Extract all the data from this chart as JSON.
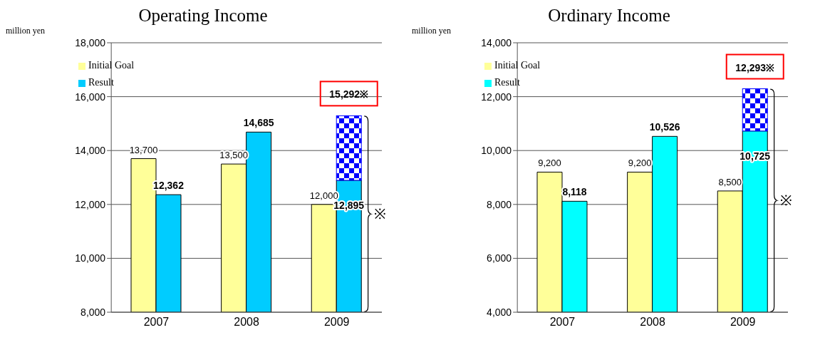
{
  "chart_data": [
    {
      "type": "bar",
      "title": "Operating Income",
      "ylabel": "million yen",
      "categories": [
        "2007",
        "2008",
        "2009"
      ],
      "legend": "top left",
      "grid": "y",
      "ylim": [
        8000,
        18000
      ],
      "yticks": [
        {
          "value": 8000,
          "label": "8,000"
        },
        {
          "value": 10000,
          "label": "10,000"
        },
        {
          "value": 12000,
          "label": "12,000"
        },
        {
          "value": 14000,
          "label": "14,000"
        },
        {
          "value": 16000,
          "label": "16,000"
        },
        {
          "value": 18000,
          "label": "18,000"
        }
      ],
      "series": [
        {
          "name": "Initial Goal",
          "color": "#ffff99",
          "values": [
            13700,
            13500,
            12000
          ],
          "value_labels": [
            "13,700",
            "13,500",
            "12,000"
          ]
        },
        {
          "name": "Result",
          "color": "#00ccff",
          "values": [
            12362,
            14685,
            12895
          ],
          "value_labels": [
            "12,362",
            "14,685",
            "12,895"
          ]
        },
        {
          "color": "#0000ff",
          "base": [
            null,
            null,
            12895
          ],
          "values": [
            null,
            null,
            2397
          ],
          "value_labels": [
            null,
            null,
            "15,292※"
          ]
        }
      ],
      "annotations": [
        "※"
      ]
    },
    {
      "type": "bar",
      "title": "Ordinary Income",
      "ylabel": "million yen",
      "categories": [
        "2007",
        "2008",
        "2009"
      ],
      "legend": "top left",
      "grid": "y",
      "ylim": [
        4000,
        14000
      ],
      "yticks": [
        {
          "value": 4000,
          "label": "4,000"
        },
        {
          "value": 6000,
          "label": "6,000"
        },
        {
          "value": 8000,
          "label": "8,000"
        },
        {
          "value": 10000,
          "label": "10,000"
        },
        {
          "value": 12000,
          "label": "12,000"
        },
        {
          "value": 14000,
          "label": "14,000"
        }
      ],
      "series": [
        {
          "name": "Initial Goal",
          "color": "#ffff99",
          "values": [
            9200,
            9200,
            8500
          ],
          "value_labels": [
            "9,200",
            "9,200",
            "8,500"
          ]
        },
        {
          "name": "Result",
          "color": "#00ffff",
          "values": [
            8118,
            10526,
            10725
          ],
          "value_labels": [
            "8,118",
            "10,526",
            "10,725"
          ]
        },
        {
          "color": "#0000ff",
          "base": [
            null,
            null,
            10725
          ],
          "values": [
            null,
            null,
            1568
          ],
          "value_labels": [
            null,
            null,
            "12,293※"
          ]
        }
      ],
      "annotations": [
        "※"
      ]
    }
  ]
}
